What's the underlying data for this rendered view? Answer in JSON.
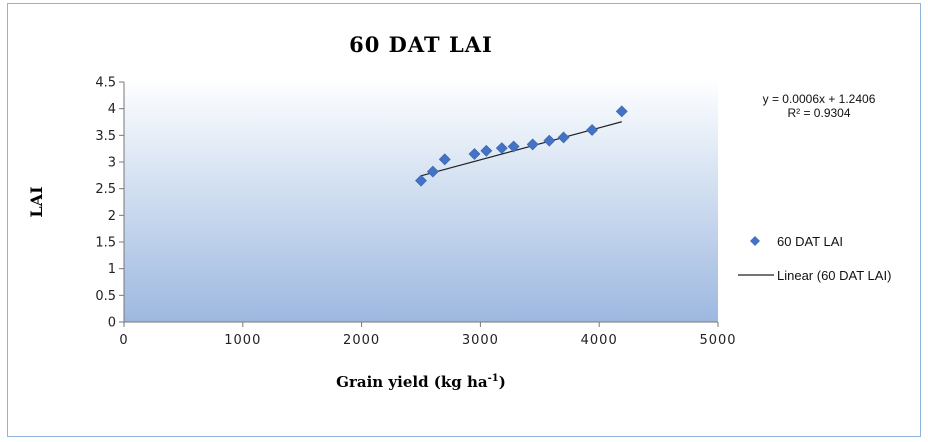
{
  "chart_data": {
    "type": "scatter",
    "title": "60 DAT LAI",
    "xlabel": "Grain yield (kg ha",
    "xlabel_sup": "-1",
    "xlabel_end": ")",
    "ylabel": "LAI",
    "xlim": [
      0,
      5000
    ],
    "ylim": [
      0,
      4.5
    ],
    "x_ticks": [
      "0",
      "1000",
      "2000",
      "3000",
      "4000",
      "5000"
    ],
    "y_ticks": [
      "0",
      "0.5",
      "1",
      "1.5",
      "2",
      "2.5",
      "3",
      "3.5",
      "4",
      "4.5"
    ],
    "series": [
      {
        "name": "60 DAT LAI",
        "color": "#4472c4",
        "marker": "diamond",
        "x": [
          2500,
          2600,
          2700,
          2950,
          3050,
          3180,
          3280,
          3440,
          3580,
          3700,
          3940,
          4190
        ],
        "y": [
          2.65,
          2.82,
          3.05,
          3.15,
          3.21,
          3.26,
          3.29,
          3.33,
          3.4,
          3.46,
          3.6,
          3.95
        ]
      }
    ],
    "trendline": {
      "name": "Linear (60 DAT LAI)",
      "color": "#222222",
      "slope": 0.0006,
      "intercept": 1.2406,
      "equation": "y = 0.0006x + 1.2406",
      "r2": "R² = 0.9304"
    },
    "grid": false,
    "legend_position": "right"
  }
}
